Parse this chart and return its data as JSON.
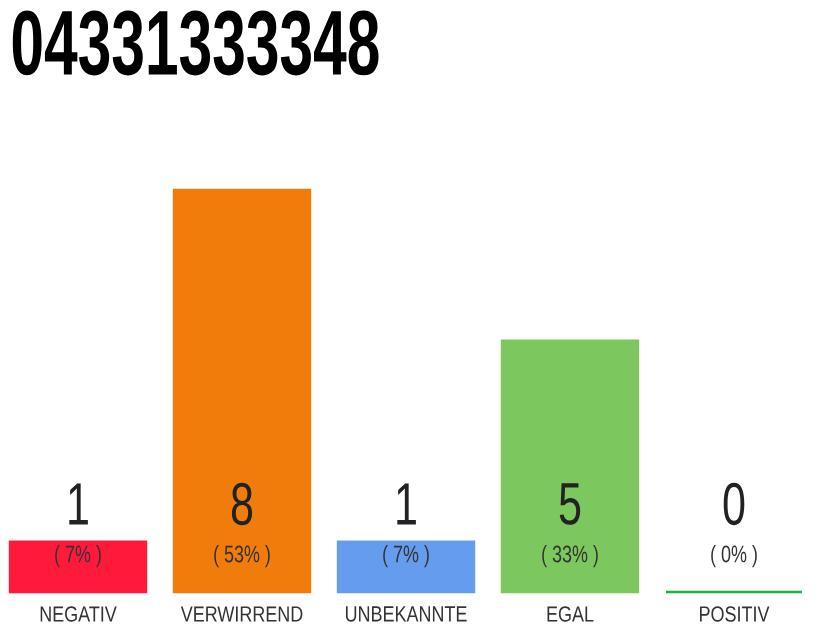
{
  "chart_data": {
    "type": "bar",
    "title": "04331333348",
    "categories": [
      "NEGATIV",
      "VERWIRREND",
      "UNBEKANNTE",
      "EGAL",
      "POSITIV"
    ],
    "values": [
      1,
      8,
      1,
      5,
      0
    ],
    "colors": [
      "#ff1a3c",
      "#f07c0c",
      "#669cee",
      "#7dc85e",
      "#22aa44"
    ],
    "data_labels": true,
    "annotations": [
      "( 7% )",
      "( 53% )",
      "( 7% )",
      "( 33% )",
      "( 0% )"
    ]
  }
}
